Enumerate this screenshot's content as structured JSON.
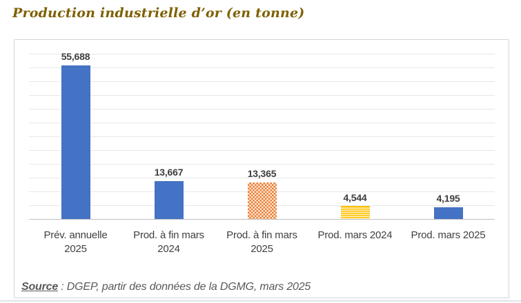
{
  "page": {
    "title": "Production industrielle d’or (en tonne)",
    "source": {
      "label": "Source",
      "rest": " : DGEP,  partir des données de la DGMG, mars 2025"
    }
  },
  "chart_data": {
    "type": "bar",
    "title": "Production industrielle d’or (en tonne)",
    "categories": [
      "Prév. annuelle 2025",
      "Prod. à fin mars 2024",
      "Prod. à fin mars 2025",
      "Prod. mars 2024",
      "Prod. mars 2025"
    ],
    "values": [
      55688,
      13667,
      13365,
      4544,
      4195
    ],
    "value_labels": [
      "55,688",
      "13,667",
      "13,365",
      "4,544",
      "4,195"
    ],
    "bar_fills": [
      "solid_blue",
      "solid_blue",
      "checker_orange",
      "stripes_yellow",
      "solid_blue"
    ],
    "ylim": [
      0,
      60000
    ],
    "gridline_step": 5000,
    "grid": true,
    "legend": "none",
    "y_axis_labels": "hidden",
    "colors": {
      "bar_blue": "#4472C4",
      "bar_orange": "#ED7D31",
      "bar_yellow": "#FFC000",
      "title": "#7F6000",
      "axis_text": "#404040",
      "source_text": "#595959",
      "gridline": "#E7E7E7",
      "axis_line": "#BFBFBF",
      "panel_border": "#D4D4D4"
    }
  }
}
